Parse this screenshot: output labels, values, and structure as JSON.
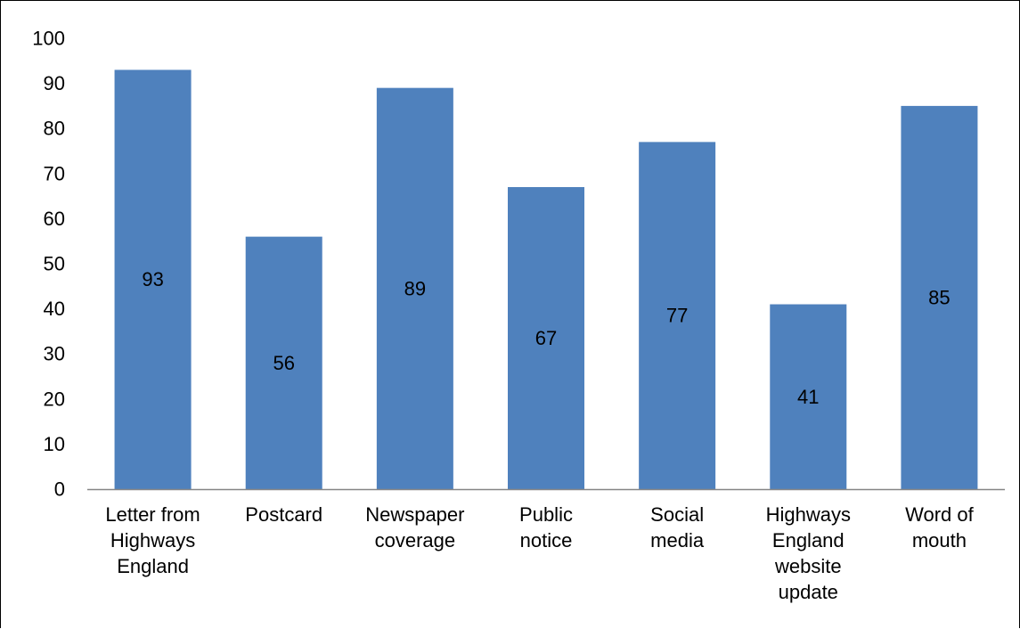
{
  "chart_data": {
    "type": "bar",
    "categories": [
      [
        "Letter from",
        "Highways",
        "England"
      ],
      [
        "Postcard"
      ],
      [
        "Newspaper",
        "coverage"
      ],
      [
        "Public",
        "notice"
      ],
      [
        "Social",
        "media"
      ],
      [
        "Highways",
        "England",
        "website",
        "update"
      ],
      [
        "Word of",
        "mouth"
      ]
    ],
    "values": [
      93,
      56,
      89,
      67,
      77,
      41,
      85
    ],
    "data_labels": [
      "93",
      "56",
      "89",
      "67",
      "77",
      "41",
      "85"
    ],
    "ylim": [
      0,
      100
    ],
    "yticks": [
      0,
      10,
      20,
      30,
      40,
      50,
      60,
      70,
      80,
      90,
      100
    ],
    "ytick_labels": [
      "0",
      "10",
      "20",
      "30",
      "40",
      "50",
      "60",
      "70",
      "80",
      "90",
      "100"
    ],
    "grid": false,
    "legend": "none",
    "title": "",
    "xlabel": "",
    "ylabel": "",
    "colors": {
      "bar": "#4F81BD",
      "axis": "#868686",
      "text": "#000000"
    }
  }
}
